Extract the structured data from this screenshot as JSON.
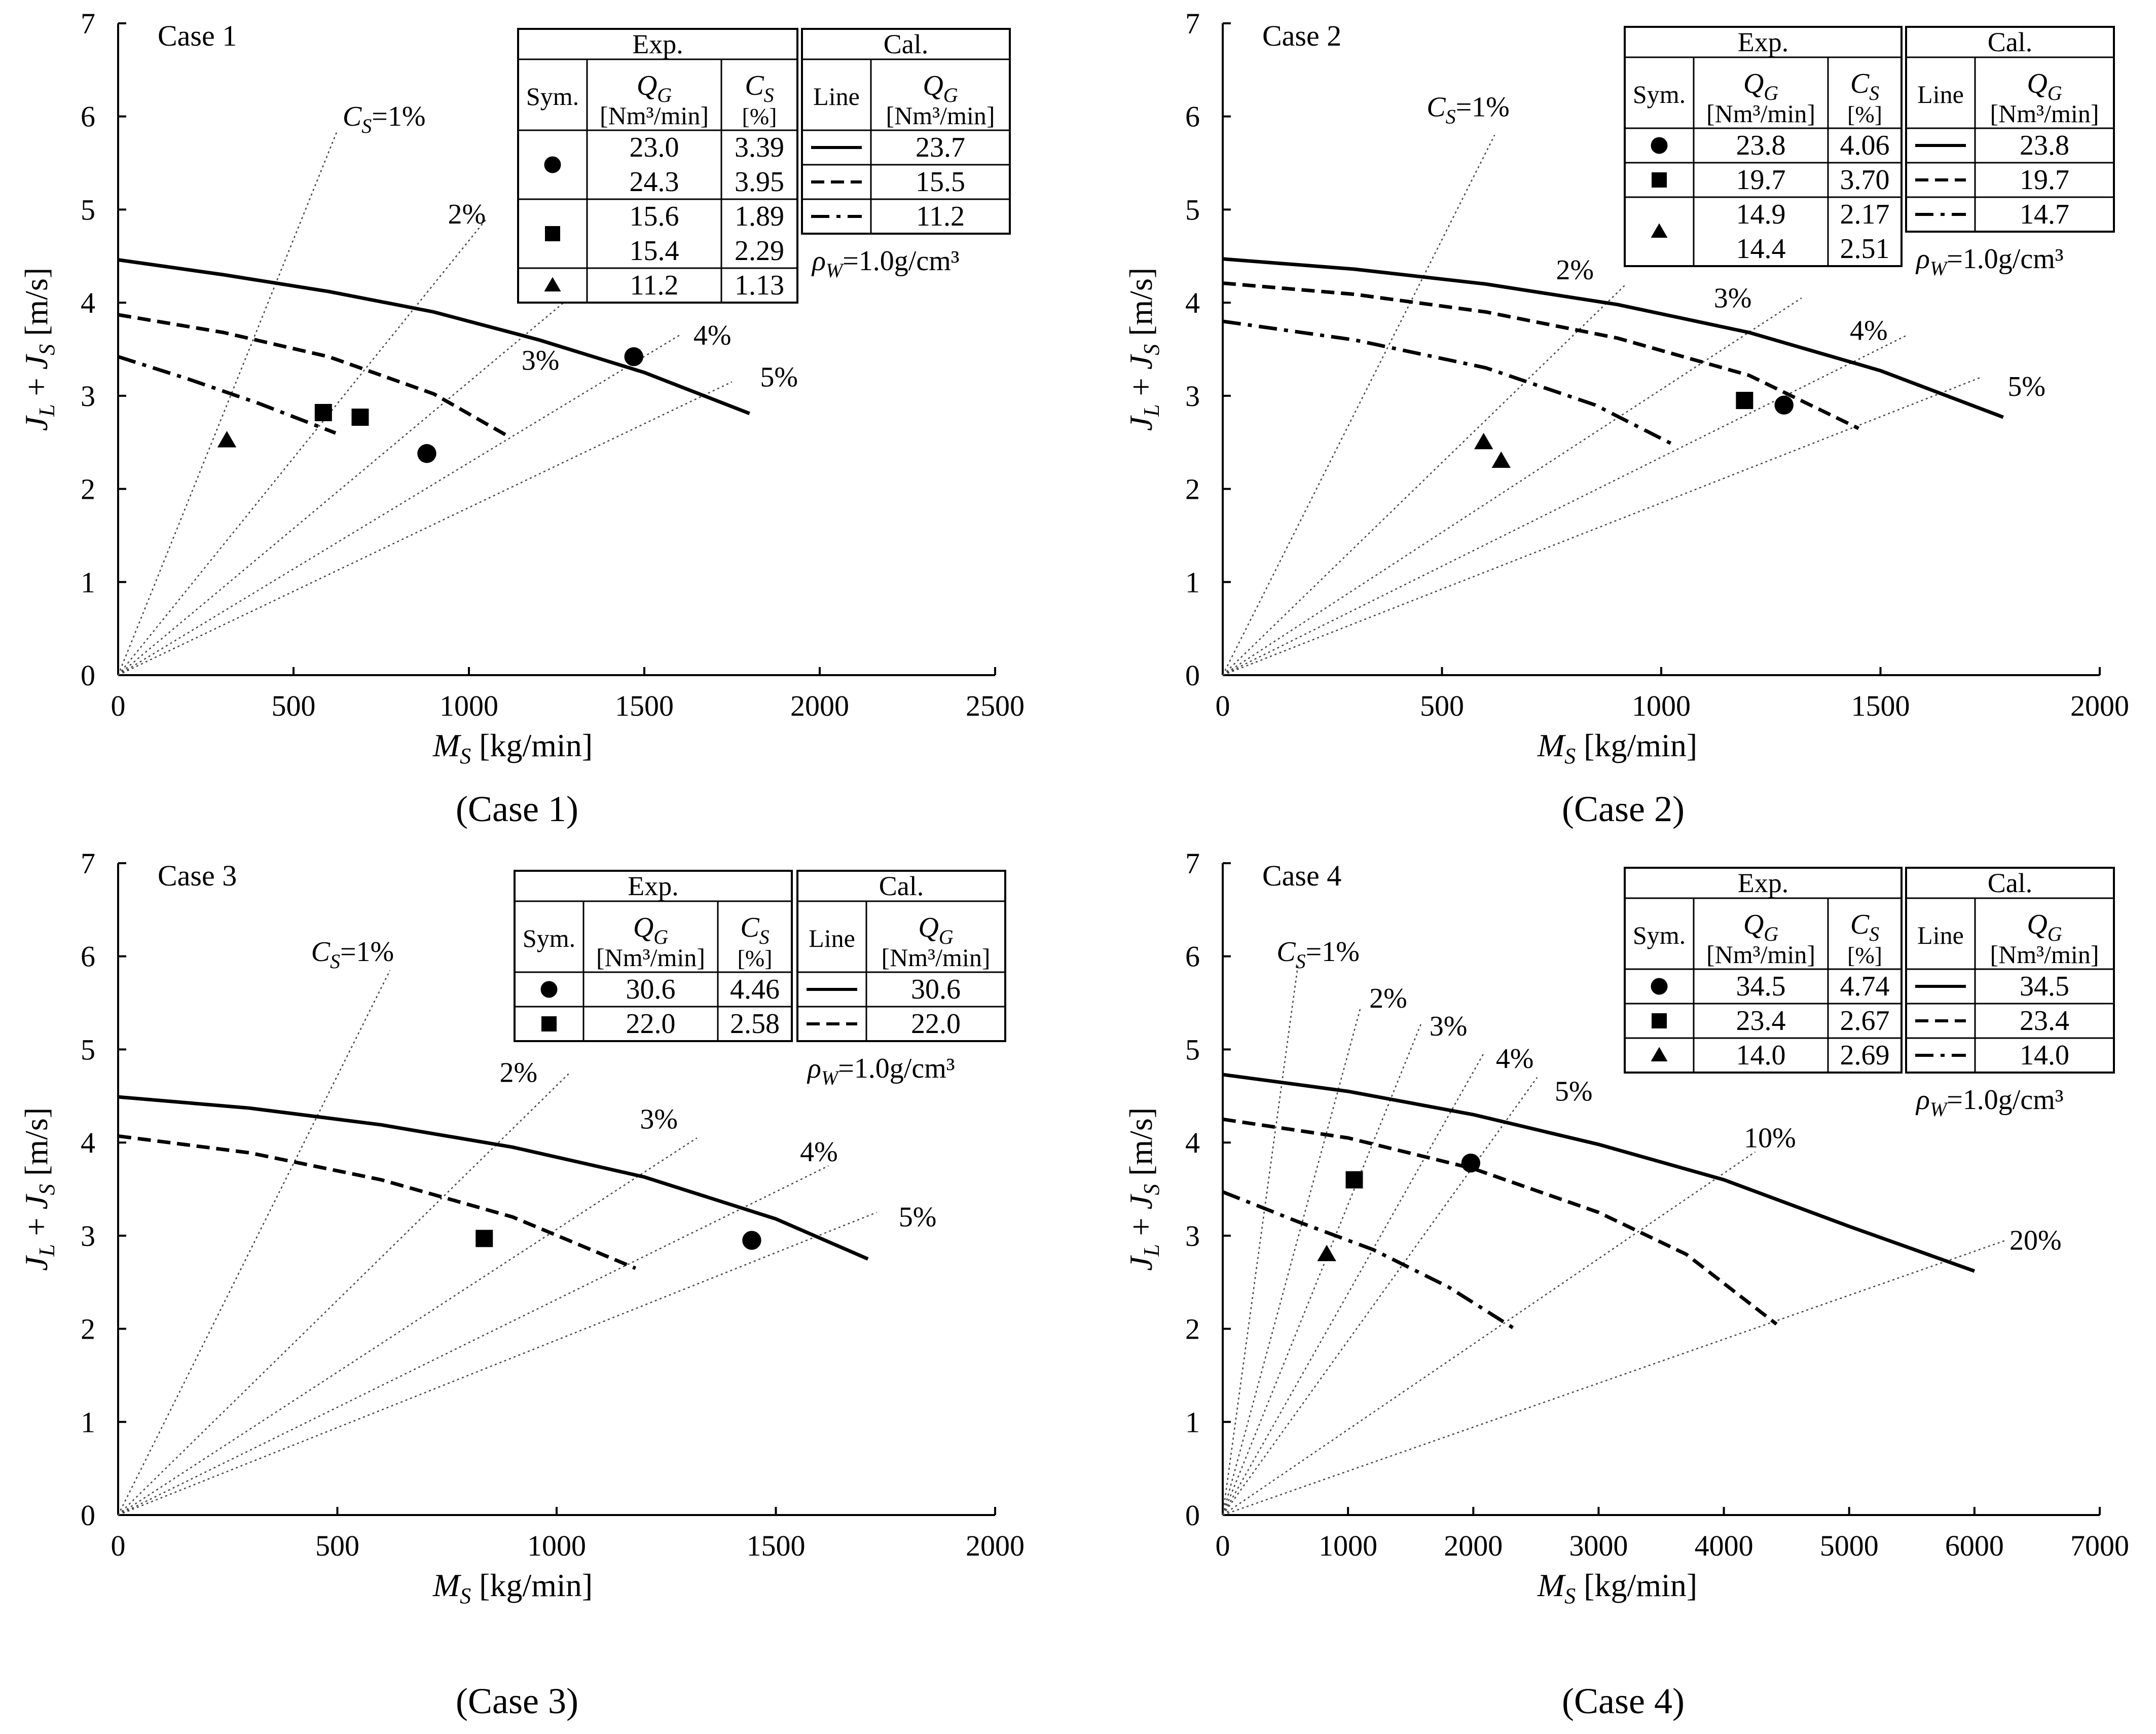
{
  "legend_headers": {
    "exp": "Exp.",
    "cal": "Cal.",
    "sym": "Sym.",
    "line": "Line",
    "qg": "Q",
    "qg_sub": "G",
    "cs": "C",
    "cs_sub": "S",
    "qg_unit": "[Nm³/min]",
    "cs_unit": "[%]",
    "rho_prefix": "ρ",
    "rho_sub": "W",
    "rho_value": "=1.0g/cm³"
  },
  "chart_data": [
    {
      "type": "line",
      "title": "Case 1",
      "caption": "(Case 1)",
      "xlabel_var": "M",
      "xlabel_sub": "S",
      "xlabel_unit": " [kg/min]",
      "ylabel": "J_L + J_S [m/s]",
      "xlim": [
        0,
        2500
      ],
      "ylim": [
        0,
        7
      ],
      "xticks": [
        0,
        500,
        1000,
        1500,
        2000,
        2500
      ],
      "yticks": [
        0,
        1,
        2,
        3,
        4,
        5,
        6,
        7
      ],
      "cs_lines": [
        {
          "label": "C_S=1%",
          "end": [
            625,
            5.85
          ],
          "label_at": [
            640,
            5.9
          ]
        },
        {
          "label": "2%",
          "end": [
            1050,
            4.9
          ],
          "label_at": [
            940,
            4.85
          ]
        },
        {
          "label": "3%",
          "end": [
            1270,
            4.0
          ],
          "label_at": [
            1150,
            3.28
          ]
        },
        {
          "label": "4%",
          "end": [
            1600,
            3.65
          ],
          "label_at": [
            1640,
            3.55
          ]
        },
        {
          "label": "5%",
          "end": [
            1750,
            3.15
          ],
          "label_at": [
            1830,
            3.1
          ]
        }
      ],
      "cal_series": [
        {
          "name": "23.7",
          "style": "solid",
          "x": [
            0,
            300,
            600,
            900,
            1200,
            1500,
            1800
          ],
          "y": [
            4.46,
            4.3,
            4.12,
            3.9,
            3.6,
            3.25,
            2.81
          ]
        },
        {
          "name": "15.5",
          "style": "dashed",
          "x": [
            0,
            300,
            600,
            900,
            1110
          ],
          "y": [
            3.87,
            3.68,
            3.42,
            3.02,
            2.57
          ]
        },
        {
          "name": "11.2",
          "style": "dashdot",
          "x": [
            0,
            200,
            400,
            620
          ],
          "y": [
            3.42,
            3.18,
            2.92,
            2.6
          ]
        }
      ],
      "exp_points": [
        {
          "sym": "circle",
          "x": 1470,
          "y": 3.42
        },
        {
          "sym": "circle",
          "x": 880,
          "y": 2.38
        },
        {
          "sym": "square",
          "x": 585,
          "y": 2.82
        },
        {
          "sym": "square",
          "x": 690,
          "y": 2.77
        },
        {
          "sym": "triangle",
          "x": 310,
          "y": 2.52
        }
      ],
      "exp_table": [
        {
          "sym": "circle",
          "qg": [
            "23.0",
            "24.3"
          ],
          "cs": [
            "3.39",
            "3.95"
          ]
        },
        {
          "sym": "square",
          "qg": [
            "15.6",
            "15.4"
          ],
          "cs": [
            "1.89",
            "2.29"
          ]
        },
        {
          "sym": "triangle",
          "qg": [
            "11.2"
          ],
          "cs": [
            "1.13"
          ]
        }
      ],
      "cal_table": [
        {
          "line": "solid",
          "qg": "23.7"
        },
        {
          "line": "dashed",
          "qg": "15.5"
        },
        {
          "line": "dashdot",
          "qg": "11.2"
        }
      ]
    },
    {
      "type": "line",
      "title": "Case 2",
      "caption": "(Case 2)",
      "xlabel_var": "M",
      "xlabel_sub": "S",
      "xlabel_unit": " [kg/min]",
      "ylabel": "J_L + J_S [m/s]",
      "xlim": [
        0,
        2000
      ],
      "ylim": [
        0,
        7
      ],
      "xticks": [
        0,
        500,
        1000,
        1500,
        2000
      ],
      "yticks": [
        0,
        1,
        2,
        3,
        4,
        5,
        6,
        7
      ],
      "cs_lines": [
        {
          "label": "C_S=1%",
          "end": [
            620,
            5.8
          ],
          "label_at": [
            465,
            6.0
          ]
        },
        {
          "label": "2%",
          "end": [
            920,
            4.2
          ],
          "label_at": [
            760,
            4.25
          ]
        },
        {
          "label": "3%",
          "end": [
            1320,
            4.05
          ],
          "label_at": [
            1120,
            3.95
          ]
        },
        {
          "label": "4%",
          "end": [
            1560,
            3.65
          ],
          "label_at": [
            1430,
            3.6
          ]
        },
        {
          "label": "5%",
          "end": [
            1730,
            3.2
          ],
          "label_at": [
            1790,
            3.0
          ]
        }
      ],
      "cal_series": [
        {
          "name": "23.8",
          "style": "solid",
          "x": [
            0,
            300,
            600,
            900,
            1200,
            1500,
            1780
          ],
          "y": [
            4.47,
            4.36,
            4.2,
            3.98,
            3.68,
            3.27,
            2.77
          ]
        },
        {
          "name": "19.7",
          "style": "dashed",
          "x": [
            0,
            300,
            600,
            900,
            1200,
            1450
          ],
          "y": [
            4.21,
            4.09,
            3.9,
            3.62,
            3.22,
            2.65
          ]
        },
        {
          "name": "14.7",
          "style": "dashdot",
          "x": [
            0,
            300,
            600,
            850,
            1030
          ],
          "y": [
            3.8,
            3.6,
            3.3,
            2.9,
            2.47
          ]
        }
      ],
      "exp_points": [
        {
          "sym": "circle",
          "x": 1280,
          "y": 2.9
        },
        {
          "sym": "square",
          "x": 1190,
          "y": 2.95
        },
        {
          "sym": "triangle",
          "x": 595,
          "y": 2.5
        },
        {
          "sym": "triangle",
          "x": 635,
          "y": 2.3
        }
      ],
      "exp_table": [
        {
          "sym": "circle",
          "qg": [
            "23.8"
          ],
          "cs": [
            "4.06"
          ]
        },
        {
          "sym": "square",
          "qg": [
            "19.7"
          ],
          "cs": [
            "3.70"
          ]
        },
        {
          "sym": "triangle",
          "qg": [
            "14.9",
            "14.4"
          ],
          "cs": [
            "2.17",
            "2.51"
          ]
        }
      ],
      "cal_table": [
        {
          "line": "solid",
          "qg": "23.8"
        },
        {
          "line": "dashed",
          "qg": "19.7"
        },
        {
          "line": "dashdot",
          "qg": "14.7"
        }
      ]
    },
    {
      "type": "line",
      "title": "Case 3",
      "caption": "(Case 3)",
      "xlabel_var": "M",
      "xlabel_sub": "S",
      "xlabel_unit": " [kg/min]",
      "ylabel": "J_L + J_S [m/s]",
      "xlim": [
        0,
        2000
      ],
      "ylim": [
        0,
        7
      ],
      "xticks": [
        0,
        500,
        1000,
        1500,
        2000
      ],
      "yticks": [
        0,
        1,
        2,
        3,
        4,
        5,
        6,
        7
      ],
      "cs_lines": [
        {
          "label": "C_S=1%",
          "end": [
            620,
            5.85
          ],
          "label_at": [
            440,
            5.95
          ]
        },
        {
          "label": "2%",
          "end": [
            1030,
            4.75
          ],
          "label_at": [
            870,
            4.65
          ]
        },
        {
          "label": "3%",
          "end": [
            1320,
            4.05
          ],
          "label_at": [
            1190,
            4.15
          ]
        },
        {
          "label": "4%",
          "end": [
            1620,
            3.75
          ],
          "label_at": [
            1555,
            3.8
          ]
        },
        {
          "label": "5%",
          "end": [
            1730,
            3.25
          ],
          "label_at": [
            1780,
            3.1
          ]
        }
      ],
      "cal_series": [
        {
          "name": "30.6",
          "style": "solid",
          "x": [
            0,
            300,
            600,
            900,
            1200,
            1500,
            1710
          ],
          "y": [
            4.49,
            4.37,
            4.19,
            3.95,
            3.63,
            3.18,
            2.75
          ]
        },
        {
          "name": "22.0",
          "style": "dashed",
          "x": [
            0,
            300,
            600,
            900,
            1180
          ],
          "y": [
            4.07,
            3.89,
            3.6,
            3.2,
            2.65
          ]
        }
      ],
      "exp_points": [
        {
          "sym": "circle",
          "x": 1445,
          "y": 2.95
        },
        {
          "sym": "square",
          "x": 835,
          "y": 2.97
        }
      ],
      "exp_table": [
        {
          "sym": "circle",
          "qg": [
            "30.6"
          ],
          "cs": [
            "4.46"
          ]
        },
        {
          "sym": "square",
          "qg": [
            "22.0"
          ],
          "cs": [
            "2.58"
          ]
        }
      ],
      "cal_table": [
        {
          "line": "solid",
          "qg": "30.6"
        },
        {
          "line": "dashed",
          "qg": "22.0"
        }
      ]
    },
    {
      "type": "line",
      "title": "Case 4",
      "caption": "(Case 4)",
      "xlabel_var": "M",
      "xlabel_sub": "S",
      "xlabel_unit": " [kg/min]",
      "ylabel": "J_L + J_S [m/s]",
      "xlim": [
        0,
        7000
      ],
      "ylim": [
        0,
        7
      ],
      "xticks": [
        0,
        1000,
        2000,
        3000,
        4000,
        5000,
        6000,
        7000
      ],
      "yticks": [
        0,
        1,
        2,
        3,
        4,
        5,
        6,
        7
      ],
      "cs_lines": [
        {
          "label": "C_S=1%",
          "end": [
            600,
            5.9
          ],
          "label_at": [
            430,
            5.95
          ]
        },
        {
          "label": "2%",
          "end": [
            1100,
            5.45
          ],
          "label_at": [
            1170,
            5.45
          ]
        },
        {
          "label": "3%",
          "end": [
            1590,
            5.3
          ],
          "label_at": [
            1650,
            5.15
          ]
        },
        {
          "label": "4%",
          "end": [
            2080,
            4.95
          ],
          "label_at": [
            2180,
            4.8
          ]
        },
        {
          "label": "5%",
          "end": [
            2510,
            4.7
          ],
          "label_at": [
            2650,
            4.45
          ]
        },
        {
          "label": "10%",
          "end": [
            4250,
            3.9
          ],
          "label_at": [
            4160,
            3.95
          ]
        },
        {
          "label": "20%",
          "end": [
            6250,
            2.95
          ],
          "label_at": [
            6280,
            2.85
          ]
        }
      ],
      "cal_series": [
        {
          "name": "34.5",
          "style": "solid",
          "x": [
            0,
            1000,
            2000,
            3000,
            4000,
            5000,
            6000
          ],
          "y": [
            4.73,
            4.55,
            4.3,
            3.98,
            3.6,
            3.1,
            2.62
          ]
        },
        {
          "name": "23.4",
          "style": "dashed",
          "x": [
            0,
            1000,
            2000,
            3000,
            3700,
            4420
          ],
          "y": [
            4.25,
            4.05,
            3.72,
            3.25,
            2.8,
            2.05
          ]
        },
        {
          "name": "14.0",
          "style": "dashdot",
          "x": [
            0,
            600,
            1200,
            1800,
            2330
          ],
          "y": [
            3.47,
            3.15,
            2.85,
            2.45,
            2.0
          ]
        }
      ],
      "exp_points": [
        {
          "sym": "circle",
          "x": 1980,
          "y": 3.78
        },
        {
          "sym": "square",
          "x": 1050,
          "y": 3.6
        },
        {
          "sym": "triangle",
          "x": 830,
          "y": 2.8
        }
      ],
      "exp_table": [
        {
          "sym": "circle",
          "qg": [
            "34.5"
          ],
          "cs": [
            "4.74"
          ]
        },
        {
          "sym": "square",
          "qg": [
            "23.4"
          ],
          "cs": [
            "2.67"
          ]
        },
        {
          "sym": "triangle",
          "qg": [
            "14.0"
          ],
          "cs": [
            "2.69"
          ]
        }
      ],
      "cal_table": [
        {
          "line": "solid",
          "qg": "34.5"
        },
        {
          "line": "dashed",
          "qg": "23.4"
        },
        {
          "line": "dashdot",
          "qg": "14.0"
        }
      ]
    }
  ]
}
